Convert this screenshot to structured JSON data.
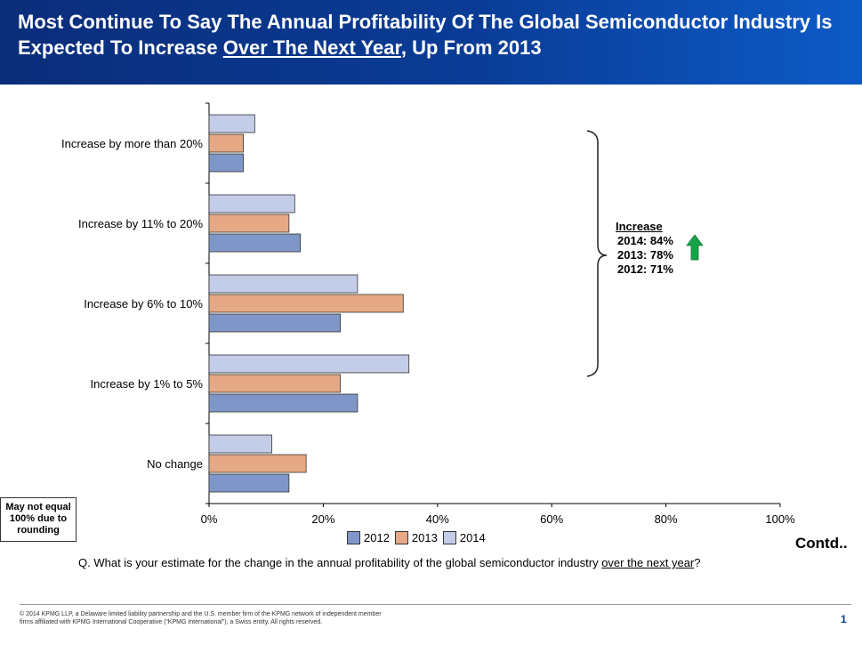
{
  "header": {
    "title_part1": "Most Continue To Say The Annual Profitability Of The Global Semiconductor Industry Is Expected To Increase ",
    "title_underlined": "Over The Next Year",
    "title_part2": ", Up From 2013"
  },
  "colors": {
    "s2012": "#7f97c8",
    "s2013": "#e6a985",
    "s2014": "#c3cde8",
    "arrow": "#17a34a"
  },
  "chart_data": {
    "type": "bar",
    "orientation": "horizontal",
    "categories": [
      "Increase by more than 20%",
      "Increase by 11% to 20%",
      "Increase by 6% to 10%",
      "Increase by 1% to 5%",
      "No change"
    ],
    "series": [
      {
        "name": "2014",
        "values": [
          8,
          15,
          26,
          35,
          11
        ]
      },
      {
        "name": "2013",
        "values": [
          6,
          14,
          34,
          23,
          17
        ]
      },
      {
        "name": "2012",
        "values": [
          6,
          16,
          23,
          26,
          14
        ]
      }
    ],
    "xlim": [
      0,
      100
    ],
    "xticks": [
      "0%",
      "20%",
      "40%",
      "60%",
      "80%",
      "100%"
    ],
    "legend_position": "bottom"
  },
  "summary": {
    "heading": "Increase",
    "rows": [
      "2014: 84%",
      "2013: 78%",
      "2012: 71%"
    ]
  },
  "note": "May not equal 100% due to rounding",
  "contd": "Contd..",
  "question": {
    "part1": "Q. What is your estimate for the change in the annual profitability of the global semiconductor industry ",
    "underlined": "over the next year",
    "part2": "?"
  },
  "footer": {
    "text": "© 2014 KPMG LLP, a Delaware limited liability partnership and the U.S. member firm of the KPMG network of independent member firms affiliated with KPMG International Cooperative (“KPMG International”), a Swiss entity. All rights reserved.",
    "page": "1"
  }
}
